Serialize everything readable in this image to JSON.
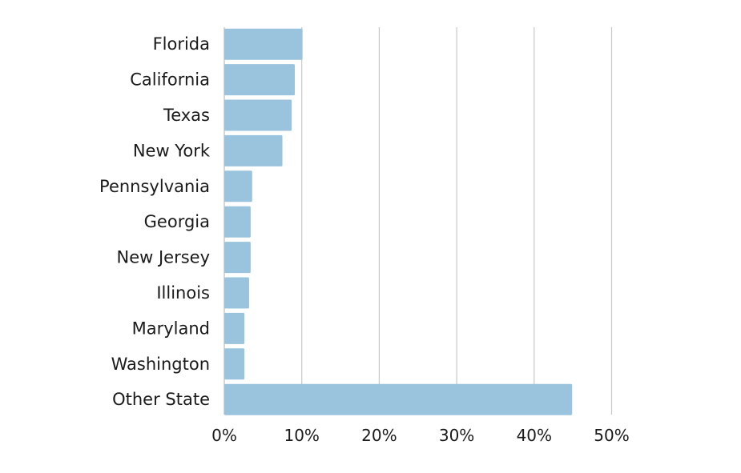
{
  "chart_data": {
    "type": "bar",
    "orientation": "horizontal",
    "categories": [
      "Florida",
      "California",
      "Texas",
      "New York",
      "Pennsylvania",
      "Georgia",
      "New Jersey",
      "Illinois",
      "Maryland",
      "Washington",
      "Other State"
    ],
    "values": [
      10.1,
      9.1,
      8.7,
      7.5,
      3.6,
      3.4,
      3.4,
      3.2,
      2.6,
      2.6,
      44.9
    ],
    "value_unit": "%",
    "xlim": [
      0,
      50
    ],
    "xticks": [
      "0%",
      "10%",
      "20%",
      "30%",
      "40%",
      "50%"
    ],
    "title": "",
    "xlabel": "",
    "ylabel": "",
    "grid": "vertical",
    "legend": "none",
    "bar_color": "#9ac4dd",
    "grid_color": "#c8c8c8"
  }
}
